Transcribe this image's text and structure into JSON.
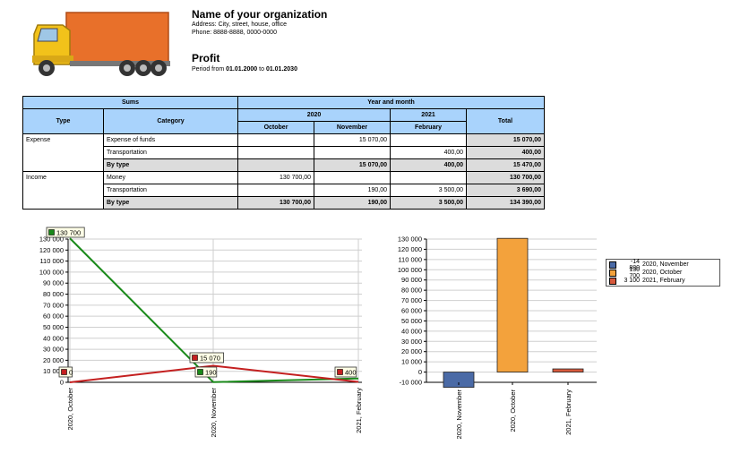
{
  "header": {
    "org_name": "Name of your organization",
    "address": "Address: City, street, house, office",
    "phone": "Phone: 8888-8888, 0000-0000",
    "title": "Profit",
    "period_prefix": "Period from",
    "period_from": "01.01.2000",
    "period_to_word": "to",
    "period_to": "01.01.2030"
  },
  "table": {
    "sums_label": "Sums",
    "year_month_label": "Year and month",
    "type_label": "Type",
    "category_label": "Category",
    "total_label": "Total",
    "year_2020": "2020",
    "year_2021": "2021",
    "month_october": "October",
    "month_november": "November",
    "month_february": "February",
    "rows": [
      {
        "type": "Expense",
        "category": "Expense of funds",
        "oct": "",
        "nov": "15 070,00",
        "feb": "",
        "total": "15 070,00"
      },
      {
        "type": "",
        "category": "Transportation",
        "oct": "",
        "nov": "",
        "feb": "400,00",
        "total": "400,00"
      },
      {
        "type": "",
        "category": "By type",
        "oct": "",
        "nov": "15 070,00",
        "feb": "400,00",
        "total": "15 470,00"
      },
      {
        "type": "Income",
        "category": "Money",
        "oct": "130 700,00",
        "nov": "",
        "feb": "",
        "total": "130 700,00"
      },
      {
        "type": "",
        "category": "Transportation",
        "oct": "",
        "nov": "190,00",
        "feb": "3 500,00",
        "total": "3 690,00"
      },
      {
        "type": "",
        "category": "By type",
        "oct": "130 700,00",
        "nov": "190,00",
        "feb": "3 500,00",
        "total": "134 390,00"
      }
    ]
  },
  "chart_data": [
    {
      "type": "line",
      "x": [
        "2020, October",
        "2020, November",
        "2021, February"
      ],
      "series": [
        {
          "color": "#1a8a1a",
          "values": [
            130700,
            190,
            3500
          ]
        },
        {
          "color": "#c42020",
          "values": [
            0,
            15070,
            400
          ]
        }
      ],
      "data_labels": [
        "130 700",
        "15 070",
        "0",
        "190",
        "400"
      ],
      "ylim": [
        0,
        130000
      ],
      "yticks": [
        "0",
        "10 000",
        "20 000",
        "30 000",
        "40 000",
        "50 000",
        "60 000",
        "70 000",
        "80 000",
        "90 000",
        "100 000",
        "110 000",
        "120 000",
        "130 000"
      ],
      "grid": true
    },
    {
      "type": "bar",
      "categories": [
        "2020, November",
        "2020, October",
        "2021, February"
      ],
      "values": [
        -14880,
        130700,
        3100
      ],
      "colors": [
        "#4a6aa6",
        "#f3a23c",
        "#d7593c"
      ],
      "ylim": [
        -10000,
        130000
      ],
      "yticks": [
        "-10 000",
        "0",
        "10 000",
        "20 000",
        "30 000",
        "40 000",
        "50 000",
        "60 000",
        "70 000",
        "80 000",
        "90 000",
        "100 000",
        "110 000",
        "120 000",
        "130 000"
      ],
      "grid": true,
      "legend": {
        "placement": "right",
        "entries": [
          {
            "value": "-14 880",
            "label": "2020, November"
          },
          {
            "value": "130 700",
            "label": "2020, October"
          },
          {
            "value": "3 100",
            "label": "2021, February"
          }
        ]
      }
    }
  ]
}
